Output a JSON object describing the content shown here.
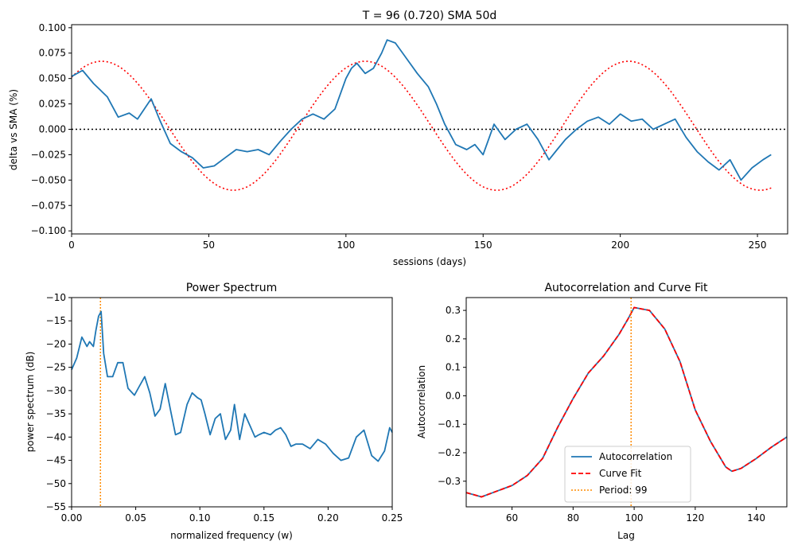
{
  "chart_data": [
    {
      "type": "line",
      "title": "T = 96 (0.720)     SMA 50d",
      "xlabel": "sessions (days)",
      "ylabel": "delta vs SMA (%)",
      "xlim": [
        0,
        261
      ],
      "ylim": [
        -0.103,
        0.103
      ],
      "xticks": [
        0,
        50,
        100,
        150,
        200,
        250
      ],
      "yticks": [
        -0.1,
        -0.075,
        -0.05,
        -0.025,
        0.0,
        0.025,
        0.05,
        0.075,
        0.1
      ],
      "ytick_labels": [
        "−0.100",
        "−0.075",
        "−0.050",
        "−0.025",
        "0.000",
        "0.025",
        "0.050",
        "0.075",
        "0.100"
      ],
      "colors": {
        "series": "#1f77b4",
        "sine": "#ff0000",
        "zero": "#000000"
      },
      "series": [
        {
          "x": [
            0,
            4,
            8,
            13,
            17,
            21,
            24,
            26,
            29,
            32,
            36,
            40,
            44,
            48,
            52,
            56,
            60,
            64,
            68,
            72,
            76,
            80,
            84,
            88,
            92,
            96,
            100,
            102,
            104,
            107,
            110,
            113,
            115,
            118,
            122,
            126,
            130,
            133,
            136,
            140,
            144,
            147,
            150,
            154,
            158,
            162,
            166,
            170,
            174,
            177,
            180,
            184,
            188,
            192,
            196,
            200,
            204,
            208,
            212,
            216,
            220,
            224,
            228,
            232,
            236,
            240,
            244,
            248,
            252,
            255
          ],
          "y": [
            0.052,
            0.058,
            0.045,
            0.032,
            0.012,
            0.016,
            0.01,
            0.018,
            0.03,
            0.01,
            -0.014,
            -0.022,
            -0.028,
            -0.038,
            -0.036,
            -0.028,
            -0.02,
            -0.022,
            -0.02,
            -0.025,
            -0.012,
            0.0,
            0.01,
            0.015,
            0.01,
            0.02,
            0.05,
            0.06,
            0.065,
            0.055,
            0.06,
            0.075,
            0.088,
            0.085,
            0.07,
            0.055,
            0.042,
            0.025,
            0.005,
            -0.015,
            -0.02,
            -0.015,
            -0.025,
            0.005,
            -0.01,
            0.0,
            0.005,
            -0.01,
            -0.03,
            -0.02,
            -0.01,
            0.0,
            0.008,
            0.012,
            0.005,
            0.015,
            0.008,
            0.01,
            0.0,
            0.005,
            0.01,
            -0.008,
            -0.022,
            -0.032,
            -0.04,
            -0.03,
            -0.05,
            -0.038,
            -0.03,
            -0.025
          ]
        },
        {
          "style": "dotted",
          "x": [
            0,
            11,
            35,
            59,
            83,
            107,
            131,
            155,
            179,
            203,
            227,
            255
          ],
          "y": [
            0.055,
            0.067,
            0.003,
            -0.06,
            0.003,
            0.067,
            0.003,
            -0.06,
            0.003,
            0.067,
            0.003,
            -0.059
          ]
        },
        {
          "style": "dotted",
          "x": [
            0,
            261
          ],
          "y": [
            0.0,
            0.0
          ]
        }
      ]
    },
    {
      "type": "line",
      "title": "Power Spectrum",
      "xlabel": "normalized frequency (w)",
      "ylabel": "power spectrum (dB)",
      "xlim": [
        0,
        0.25
      ],
      "ylim": [
        -55,
        -10
      ],
      "xticks": [
        0.0,
        0.05,
        0.1,
        0.15,
        0.2,
        0.25
      ],
      "xtick_labels": [
        "0.00",
        "0.05",
        "0.10",
        "0.15",
        "0.20",
        "0.25"
      ],
      "yticks": [
        -55,
        -50,
        -45,
        -40,
        -35,
        -30,
        -25,
        -20,
        -15,
        -10
      ],
      "ytick_labels": [
        "−55",
        "−50",
        "−45",
        "−40",
        "−35",
        "−30",
        "−25",
        "−20",
        "−15",
        "−10"
      ],
      "vline": 0.0225,
      "series": [
        {
          "x": [
            0.0,
            0.004,
            0.008,
            0.012,
            0.014,
            0.017,
            0.019,
            0.021,
            0.023,
            0.025,
            0.028,
            0.032,
            0.036,
            0.04,
            0.044,
            0.049,
            0.053,
            0.057,
            0.061,
            0.065,
            0.069,
            0.073,
            0.077,
            0.081,
            0.085,
            0.09,
            0.094,
            0.098,
            0.101,
            0.104,
            0.108,
            0.112,
            0.116,
            0.12,
            0.124,
            0.127,
            0.131,
            0.135,
            0.139,
            0.143,
            0.146,
            0.15,
            0.155,
            0.159,
            0.163,
            0.167,
            0.171,
            0.175,
            0.18,
            0.186,
            0.192,
            0.198,
            0.204,
            0.21,
            0.216,
            0.222,
            0.228,
            0.234,
            0.239,
            0.244,
            0.248,
            0.25
          ],
          "y": [
            -25.5,
            -23.0,
            -18.5,
            -20.5,
            -19.5,
            -20.5,
            -17.0,
            -14.0,
            -13.0,
            -22.0,
            -27.0,
            -27.0,
            -24.0,
            -24.0,
            -29.5,
            -31.0,
            -29.0,
            -27.0,
            -30.5,
            -35.5,
            -34.0,
            -28.5,
            -34.0,
            -39.5,
            -39.0,
            -33.0,
            -30.5,
            -31.5,
            -32.0,
            -35.0,
            -39.5,
            -36.0,
            -35.0,
            -40.5,
            -38.5,
            -33.0,
            -40.5,
            -35.0,
            -37.5,
            -40.0,
            -39.5,
            -39.0,
            -39.5,
            -38.5,
            -38.0,
            -39.5,
            -42.0,
            -41.5,
            -41.5,
            -42.5,
            -40.5,
            -41.5,
            -43.5,
            -45.0,
            -44.5,
            -40.0,
            -38.5,
            -44.0,
            -45.2,
            -43.0,
            -38.0,
            -39.0
          ]
        }
      ]
    },
    {
      "type": "line",
      "title": "Autocorrelation and Curve Fit",
      "xlabel": "Lag",
      "ylabel": "Autocorrelation",
      "xlim": [
        45,
        150
      ],
      "ylim": [
        -0.39,
        0.345
      ],
      "xticks": [
        60,
        80,
        100,
        120,
        140
      ],
      "yticks": [
        -0.3,
        -0.2,
        -0.1,
        0.0,
        0.1,
        0.2,
        0.3
      ],
      "ytick_labels": [
        "−0.3",
        "−0.2",
        "−0.1",
        "0.0",
        "0.1",
        "0.2",
        "0.3"
      ],
      "vline": 99,
      "legend": {
        "placement": "lower center",
        "entries": [
          "Autocorrelation",
          "Curve Fit",
          "Period: 99"
        ]
      },
      "series": [
        {
          "name": "Autocorrelation",
          "x": [
            45,
            50,
            55,
            60,
            65,
            70,
            75,
            80,
            85,
            90,
            95,
            98,
            100,
            105,
            110,
            115,
            120,
            125,
            130,
            132,
            135,
            140,
            145,
            150
          ],
          "y": [
            -0.34,
            -0.355,
            -0.335,
            -0.315,
            -0.28,
            -0.22,
            -0.11,
            -0.01,
            0.08,
            0.14,
            0.215,
            0.27,
            0.31,
            0.3,
            0.235,
            0.12,
            -0.05,
            -0.16,
            -0.25,
            -0.265,
            -0.255,
            -0.22,
            -0.18,
            -0.145
          ]
        },
        {
          "name": "Curve Fit",
          "x": [
            45,
            50,
            55,
            60,
            65,
            70,
            75,
            80,
            85,
            90,
            95,
            98,
            100,
            105,
            110,
            115,
            120,
            125,
            130,
            132,
            135,
            140,
            145,
            150
          ],
          "y": [
            -0.34,
            -0.355,
            -0.335,
            -0.315,
            -0.28,
            -0.22,
            -0.11,
            -0.01,
            0.08,
            0.14,
            0.215,
            0.27,
            0.31,
            0.3,
            0.235,
            0.12,
            -0.05,
            -0.16,
            -0.25,
            -0.265,
            -0.255,
            -0.22,
            -0.18,
            -0.145
          ]
        },
        {
          "name": "Period: 99",
          "x": [
            99,
            99
          ],
          "y": [
            -0.39,
            0.345
          ]
        }
      ]
    }
  ]
}
